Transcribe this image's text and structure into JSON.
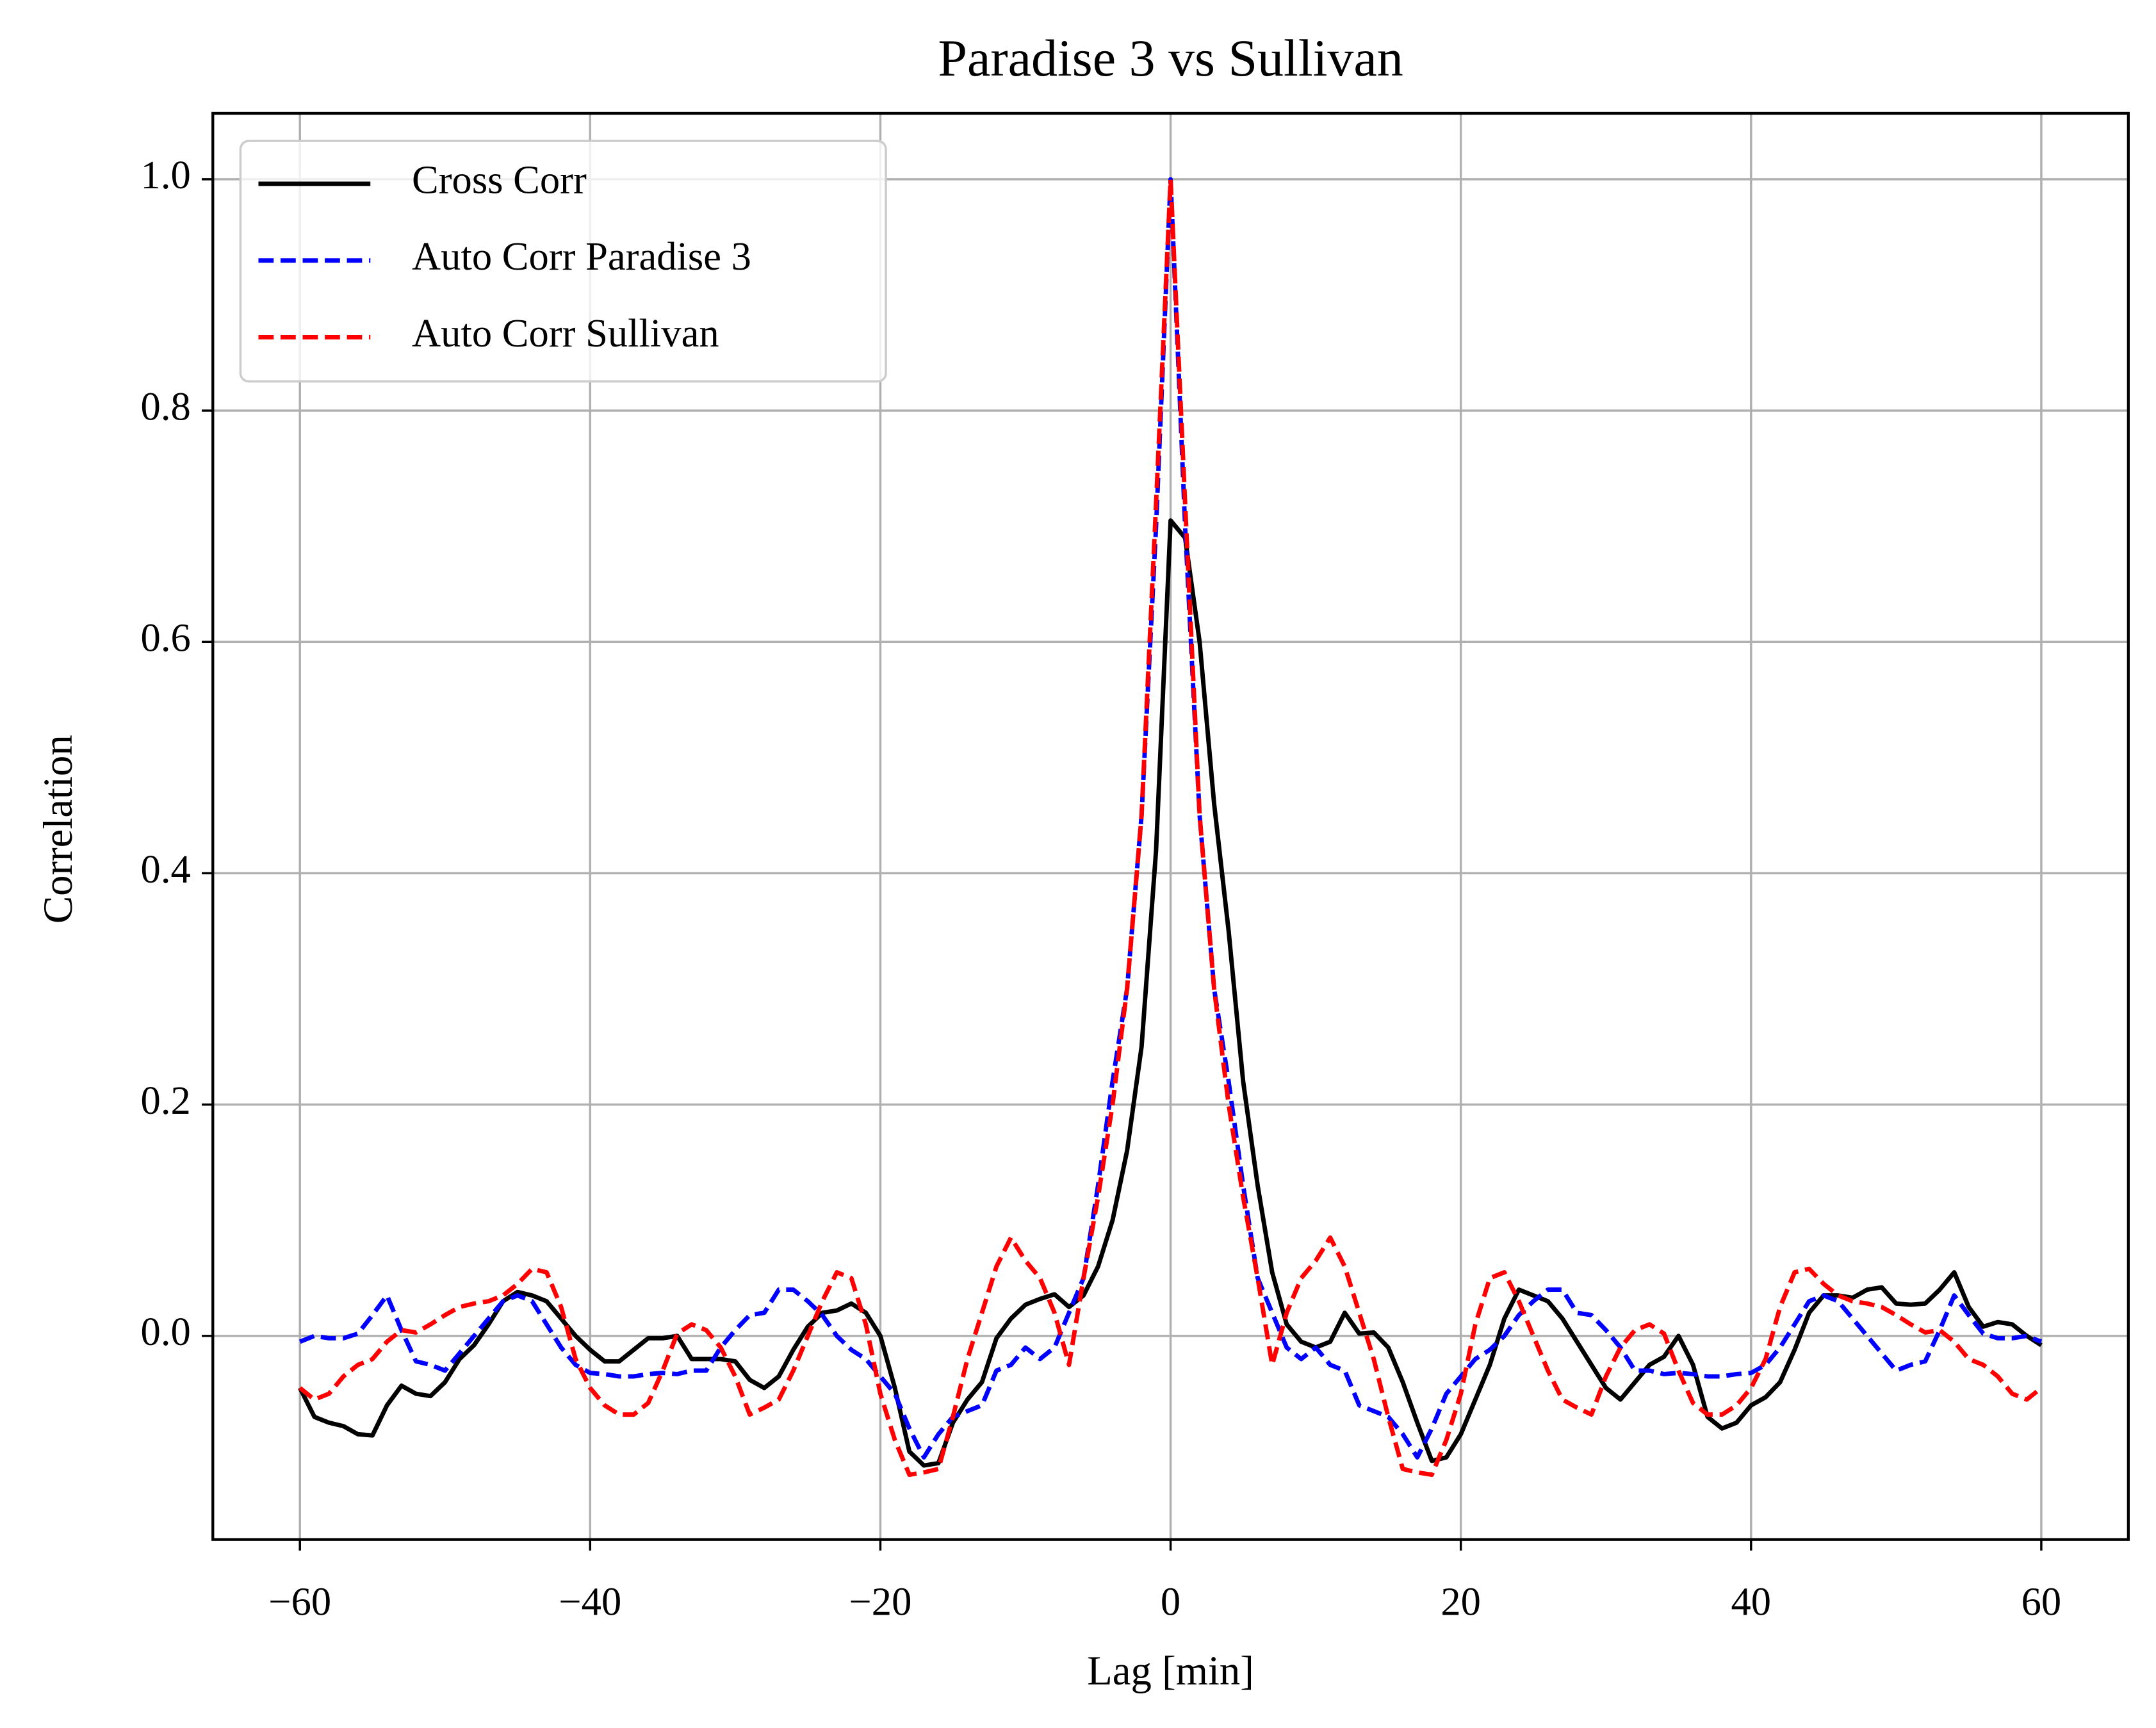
{
  "chart_data": {
    "type": "line",
    "title": "Paradise 3 vs Sullivan",
    "xlabel": "Lag [min]",
    "ylabel": "Correlation",
    "x": [
      -60,
      -59,
      -58,
      -57,
      -56,
      -55,
      -54,
      -53,
      -52,
      -51,
      -50,
      -49,
      -48,
      -47,
      -46,
      -45,
      -44,
      -43,
      -42,
      -41,
      -40,
      -39,
      -38,
      -37,
      -36,
      -35,
      -34,
      -33,
      -32,
      -31,
      -30,
      -29,
      -28,
      -27,
      -26,
      -25,
      -24,
      -23,
      -22,
      -21,
      -20,
      -19,
      -18,
      -17,
      -16,
      -15,
      -14,
      -13,
      -12,
      -11,
      -10,
      -9,
      -8,
      -7,
      -6,
      -5,
      -4,
      -3,
      -2,
      -1,
      0,
      1,
      2,
      3,
      4,
      5,
      6,
      7,
      8,
      9,
      10,
      11,
      12,
      13,
      14,
      15,
      16,
      17,
      18,
      19,
      20,
      21,
      22,
      23,
      24,
      25,
      26,
      27,
      28,
      29,
      30,
      31,
      32,
      33,
      34,
      35,
      36,
      37,
      38,
      39,
      40,
      41,
      42,
      43,
      44,
      45,
      46,
      47,
      48,
      49,
      50,
      51,
      52,
      53,
      54,
      55,
      56,
      57,
      58,
      59,
      60
    ],
    "series": [
      {
        "name": "Cross Corr",
        "color": "#000000",
        "dashed": false,
        "values": [
          -0.045,
          -0.07,
          -0.075,
          -0.078,
          -0.085,
          -0.086,
          -0.06,
          -0.043,
          -0.05,
          -0.052,
          -0.04,
          -0.02,
          -0.008,
          0.01,
          0.03,
          0.038,
          0.035,
          0.03,
          0.015,
          0.0,
          -0.012,
          -0.022,
          -0.022,
          -0.012,
          -0.002,
          -0.002,
          0.0,
          -0.02,
          -0.02,
          -0.02,
          -0.022,
          -0.038,
          -0.045,
          -0.035,
          -0.012,
          0.008,
          0.02,
          0.022,
          0.028,
          0.02,
          0.0,
          -0.045,
          -0.1,
          -0.112,
          -0.11,
          -0.075,
          -0.055,
          -0.04,
          -0.002,
          0.015,
          0.027,
          0.032,
          0.036,
          0.025,
          0.035,
          0.06,
          0.1,
          0.16,
          0.25,
          0.42,
          0.705,
          0.69,
          0.6,
          0.46,
          0.35,
          0.22,
          0.13,
          0.055,
          0.01,
          -0.005,
          -0.01,
          -0.005,
          0.02,
          0.002,
          0.003,
          -0.01,
          -0.04,
          -0.075,
          -0.108,
          -0.105,
          -0.085,
          -0.055,
          -0.025,
          0.015,
          0.04,
          0.035,
          0.03,
          0.015,
          -0.005,
          -0.025,
          -0.045,
          -0.055,
          -0.04,
          -0.025,
          -0.018,
          0.0,
          -0.025,
          -0.07,
          -0.08,
          -0.075,
          -0.06,
          -0.053,
          -0.04,
          -0.012,
          0.02,
          0.035,
          0.035,
          0.033,
          0.04,
          0.042,
          0.028,
          0.027,
          0.028,
          0.04,
          0.055,
          0.025,
          0.008,
          0.012,
          0.01,
          0.0,
          -0.008
        ]
      },
      {
        "name": "Auto Corr Paradise 3",
        "color": "#0000ff",
        "dashed": true,
        "values": [
          -0.005,
          0.0,
          -0.002,
          -0.002,
          0.002,
          0.018,
          0.035,
          0.005,
          -0.022,
          -0.025,
          -0.03,
          -0.015,
          0.0,
          0.015,
          0.03,
          0.035,
          0.03,
          0.01,
          -0.01,
          -0.025,
          -0.032,
          -0.033,
          -0.035,
          -0.035,
          -0.033,
          -0.032,
          -0.033,
          -0.03,
          -0.03,
          -0.01,
          0.005,
          0.018,
          0.02,
          0.04,
          0.04,
          0.03,
          0.018,
          0.0,
          -0.012,
          -0.02,
          -0.035,
          -0.05,
          -0.08,
          -0.105,
          -0.085,
          -0.07,
          -0.065,
          -0.06,
          -0.03,
          -0.025,
          -0.01,
          -0.02,
          -0.01,
          0.02,
          0.05,
          0.13,
          0.22,
          0.3,
          0.45,
          0.7,
          1.0,
          0.7,
          0.45,
          0.3,
          0.22,
          0.13,
          0.05,
          0.02,
          -0.01,
          -0.02,
          -0.01,
          -0.025,
          -0.03,
          -0.06,
          -0.065,
          -0.07,
          -0.085,
          -0.105,
          -0.08,
          -0.05,
          -0.035,
          -0.02,
          -0.012,
          0.0,
          0.018,
          0.03,
          0.04,
          0.04,
          0.02,
          0.018,
          0.005,
          -0.01,
          -0.03,
          -0.03,
          -0.033,
          -0.032,
          -0.033,
          -0.035,
          -0.035,
          -0.033,
          -0.032,
          -0.025,
          -0.01,
          0.01,
          0.03,
          0.035,
          0.03,
          0.015,
          0.0,
          -0.015,
          -0.03,
          -0.025,
          -0.022,
          0.005,
          0.035,
          0.018,
          0.002,
          -0.002,
          -0.002,
          0.0,
          -0.005
        ]
      },
      {
        "name": "Auto Corr Sullivan",
        "color": "#ff0000",
        "dashed": true,
        "values": [
          -0.045,
          -0.055,
          -0.05,
          -0.035,
          -0.025,
          -0.02,
          -0.005,
          0.005,
          0.003,
          0.01,
          0.018,
          0.025,
          0.028,
          0.03,
          0.035,
          0.045,
          0.058,
          0.055,
          0.025,
          -0.02,
          -0.045,
          -0.06,
          -0.068,
          -0.068,
          -0.058,
          -0.03,
          0.002,
          0.01,
          0.005,
          -0.01,
          -0.035,
          -0.068,
          -0.062,
          -0.055,
          -0.03,
          0.0,
          0.03,
          0.055,
          0.05,
          0.01,
          -0.05,
          -0.09,
          -0.12,
          -0.118,
          -0.115,
          -0.07,
          -0.02,
          0.02,
          0.06,
          0.085,
          0.065,
          0.05,
          0.02,
          -0.025,
          0.05,
          0.12,
          0.2,
          0.3,
          0.45,
          0.72,
          1.0,
          0.72,
          0.45,
          0.3,
          0.2,
          0.12,
          0.05,
          -0.025,
          0.02,
          0.05,
          0.065,
          0.085,
          0.06,
          0.02,
          -0.02,
          -0.07,
          -0.115,
          -0.118,
          -0.12,
          -0.09,
          -0.05,
          0.01,
          0.05,
          0.055,
          0.03,
          0.0,
          -0.03,
          -0.055,
          -0.062,
          -0.068,
          -0.035,
          -0.01,
          0.005,
          0.01,
          0.002,
          -0.03,
          -0.058,
          -0.068,
          -0.068,
          -0.06,
          -0.045,
          -0.02,
          0.025,
          0.055,
          0.058,
          0.045,
          0.035,
          0.03,
          0.028,
          0.025,
          0.018,
          0.01,
          0.003,
          0.005,
          -0.005,
          -0.02,
          -0.025,
          -0.035,
          -0.05,
          -0.055,
          -0.045
        ]
      }
    ],
    "xlim": [
      -66,
      66
    ],
    "ylim": [
      -0.176,
      1.057
    ],
    "xticks": [
      {
        "value": -60,
        "label": "−60"
      },
      {
        "value": -40,
        "label": "−40"
      },
      {
        "value": -20,
        "label": "−20"
      },
      0,
      20,
      40,
      60
    ],
    "yticks": [
      {
        "value": 0,
        "label": "0.0"
      },
      0.2,
      0.4,
      0.6,
      0.8,
      {
        "value": 1,
        "label": "1.0"
      }
    ],
    "grid": true,
    "legend": "upper left"
  }
}
